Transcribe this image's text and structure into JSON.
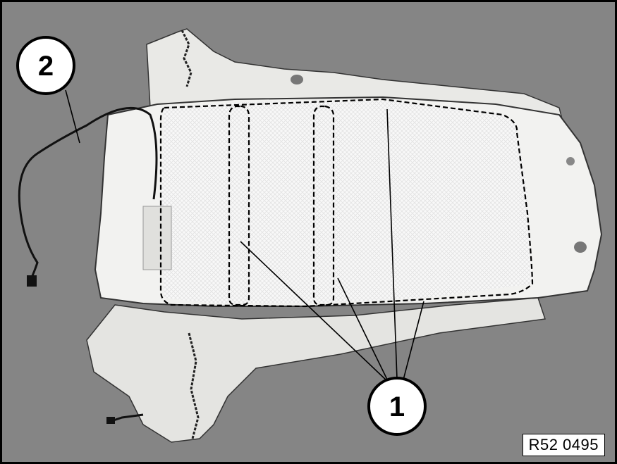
{
  "figure": {
    "reference_id": "R52 0495",
    "callouts": [
      {
        "id": "callout-1",
        "label": "1"
      },
      {
        "id": "callout-2",
        "label": "2"
      }
    ],
    "colors": {
      "background": "#858585",
      "cover": "#f2f2f0",
      "pad": "#fafafa",
      "outline": "#000000"
    }
  }
}
